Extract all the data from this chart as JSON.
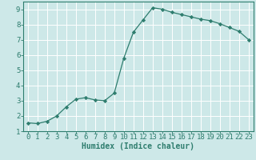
{
  "x": [
    0,
    1,
    2,
    3,
    4,
    5,
    6,
    7,
    8,
    9,
    10,
    11,
    12,
    13,
    14,
    15,
    16,
    17,
    18,
    19,
    20,
    21,
    22,
    23
  ],
  "y": [
    1.55,
    1.5,
    1.65,
    2.0,
    2.6,
    3.1,
    3.2,
    3.05,
    3.0,
    3.5,
    5.8,
    7.5,
    8.3,
    9.1,
    9.0,
    8.8,
    8.65,
    8.5,
    8.35,
    8.25,
    8.05,
    7.8,
    7.55,
    7.0
  ],
  "line_color": "#2e7d6e",
  "marker": "D",
  "marker_size": 2.2,
  "bg_color": "#cde8e8",
  "grid_color": "#ffffff",
  "xlabel": "Humidex (Indice chaleur)",
  "xlim": [
    -0.5,
    23.5
  ],
  "ylim": [
    1,
    9.5
  ],
  "yticks": [
    1,
    2,
    3,
    4,
    5,
    6,
    7,
    8,
    9
  ],
  "xticks": [
    0,
    1,
    2,
    3,
    4,
    5,
    6,
    7,
    8,
    9,
    10,
    11,
    12,
    13,
    14,
    15,
    16,
    17,
    18,
    19,
    20,
    21,
    22,
    23
  ],
  "tick_color": "#2e7d6e",
  "label_color": "#2e7d6e",
  "axis_color": "#2e7d6e",
  "xlabel_fontsize": 7,
  "tick_fontsize": 6.5
}
